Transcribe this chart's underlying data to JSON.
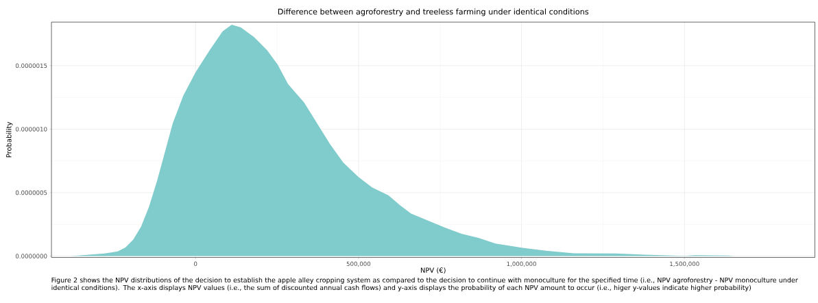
{
  "chart_data": {
    "type": "area",
    "title": "Difference between agroforestry and treeless farming under identical conditions",
    "xlabel": "NPV (€)",
    "ylabel": "Probability",
    "annotations": [
      "Figure 2 shows the NPV distributions of the decision to establish the apple alley cropping system as compared to the decision to continue with monoculture for the specified time (i.e., NPV agroforestry - NPV monoculture under identical conditions). The x-axis displays NPV values (i.e., the sum of discounted annual cash flows) and y-axis displays the probability of each NPV amount to occur (i.e., higer y-values indicate higher probability)"
    ],
    "x": [
      -380000,
      -360000,
      -279000,
      -239000,
      -215000,
      -191000,
      -167000,
      -143000,
      -118000,
      -94000,
      -70000,
      -38000,
      0,
      43000,
      83000,
      111000,
      139000,
      180000,
      220000,
      252000,
      284000,
      333000,
      373000,
      413000,
      453000,
      500000,
      542000,
      592000,
      627000,
      661000,
      713000,
      765000,
      816000,
      868000,
      920000,
      1000000,
      1075000,
      1161000,
      1290000,
      1377000,
      1500000,
      1532000,
      1635000,
      1652000
    ],
    "values": [
      0,
      4e-09,
      2.1e-08,
      3.7e-08,
      6.8e-08,
      1.3e-07,
      2.33e-07,
      3.87e-07,
      5.93e-07,
      8.19e-07,
      1.045e-06,
      1.261e-06,
      1.447e-06,
      1.621e-06,
      1.77e-06,
      1.823e-06,
      1.802e-06,
      1.724e-06,
      1.621e-06,
      1.508e-06,
      1.354e-06,
      1.21e-06,
      1.045e-06,
      8.81e-07,
      7.37e-07,
      6.23e-07,
      5.41e-07,
      4.78e-07,
      4.01e-07,
      3.35e-07,
      2.8e-07,
      2.25e-07,
      1.76e-07,
      1.43e-07,
      9.9e-08,
      6.6e-08,
      4.2e-08,
      2.2e-08,
      2e-08,
      1.1e-08,
      2e-09,
      7e-09,
      4e-09,
      0
    ],
    "color": "#80cbcb",
    "xlim": [
      -442000,
      1900000
    ],
    "ylim": [
      -1.08e-08,
      1.8435e-06
    ],
    "xticks": [
      0,
      {
        "value": 500000,
        "label": "500,000"
      },
      {
        "value": 1000000,
        "label": "1,000,000"
      },
      {
        "value": 1500000,
        "label": "1,500,000"
      }
    ],
    "yticks": [
      {
        "value": 0,
        "label": "0.0000000"
      },
      {
        "value": 5e-07,
        "label": "0.0000005"
      },
      {
        "value": 1e-06,
        "label": "0.0000010"
      },
      {
        "value": 1.5e-06,
        "label": "0.0000015"
      }
    ],
    "grid": true
  }
}
